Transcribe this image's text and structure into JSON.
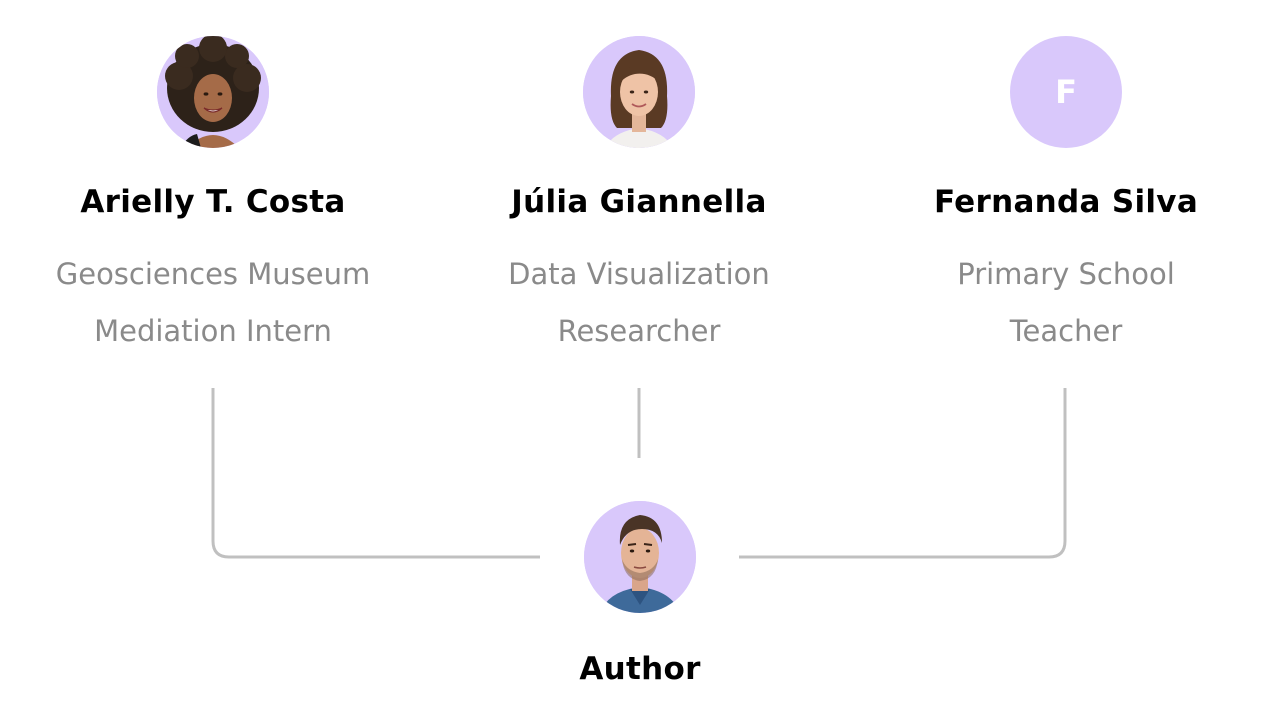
{
  "people": [
    {
      "name": "Arielly T. Costa",
      "role_line1": "Geosciences Museum",
      "role_line2": "Mediation Intern",
      "avatar": "photo-avatar"
    },
    {
      "name": "Júlia Giannella",
      "role_line1": "Data Visualization",
      "role_line2": "Researcher",
      "avatar": "photo-avatar"
    },
    {
      "name": "Fernanda Silva",
      "role_line1": "Primary School",
      "role_line2": "Teacher",
      "avatar": "initial-avatar",
      "initial": "F"
    }
  ],
  "author": {
    "label": "Author",
    "avatar": "photo-avatar"
  },
  "colors": {
    "avatar_bg": "#d9c8fb",
    "name_text": "#000000",
    "role_text": "#8a8a8a",
    "connector": "#c0c0c0"
  }
}
